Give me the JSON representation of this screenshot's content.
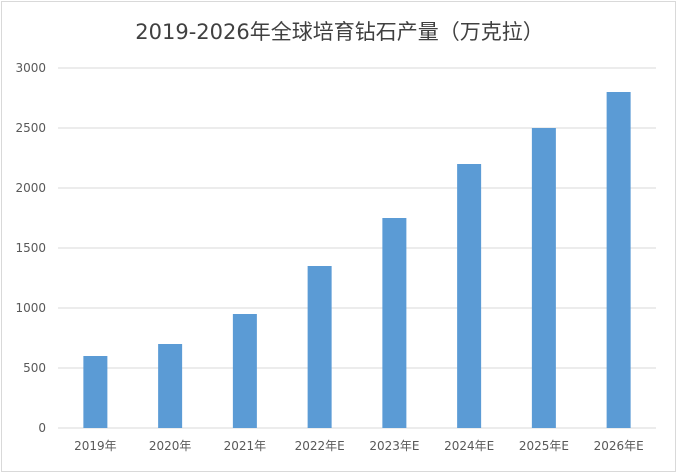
{
  "chart_data": {
    "type": "bar",
    "title": "2019-2026年全球培育钻石产量（万克拉）",
    "categories": [
      "2019年",
      "2020年",
      "2021年",
      "2022年E",
      "2023年E",
      "2024年E",
      "2025年E",
      "2026年E"
    ],
    "values": [
      600,
      700,
      950,
      1350,
      1750,
      2200,
      2500,
      2800
    ],
    "xlabel": "",
    "ylabel": "",
    "ylim": [
      0,
      3000
    ],
    "yticks": [
      "0",
      "500",
      "1000",
      "1500",
      "2000",
      "2500",
      "3000"
    ],
    "grid": true,
    "legend": "none",
    "colors": {
      "bar": "#5b9bd5",
      "grid": "#d9d9d9",
      "text": "#595959"
    }
  }
}
